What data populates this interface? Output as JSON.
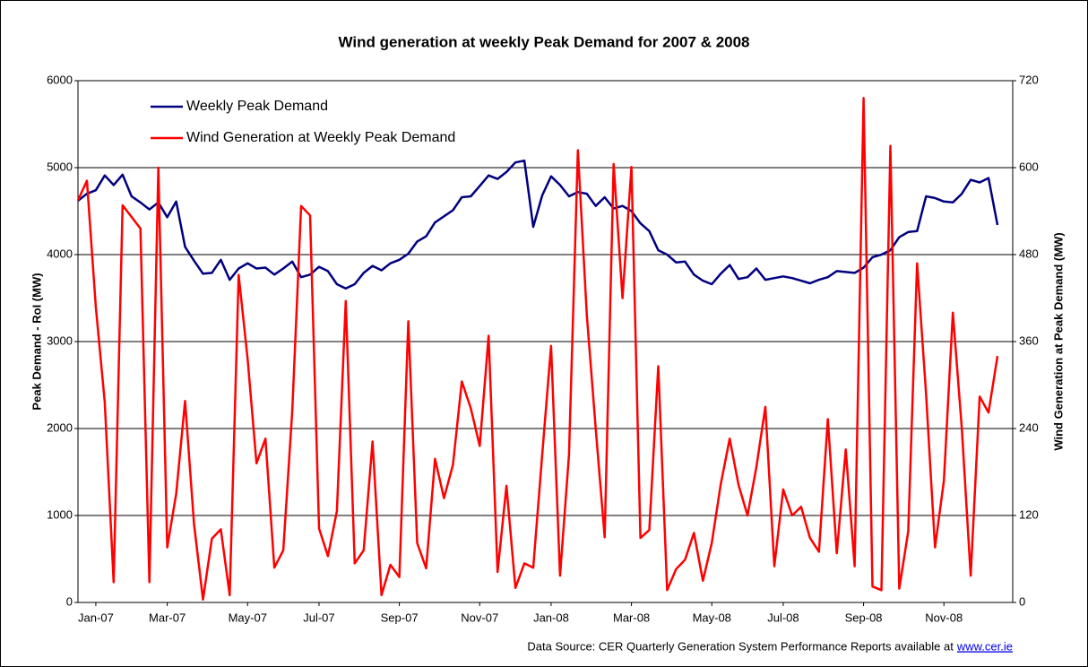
{
  "chart_data": {
    "type": "line",
    "title": "Wind generation at weekly Peak Demand for 2007 & 2008",
    "y_label": "Peak Demand - RoI  (MW)",
    "y2_label": "Wind Generation at Peak Demand (MW)",
    "source": "Data Source: CER Quarterly Generation System Performance Reports available at",
    "source_link": "www.cer.ie",
    "categories": [
      null,
      null,
      "Jan-07",
      null,
      null,
      null,
      null,
      null,
      null,
      null,
      "Mar-07",
      null,
      null,
      null,
      null,
      null,
      null,
      null,
      null,
      "May-07",
      null,
      null,
      null,
      null,
      null,
      null,
      null,
      "Jul-07",
      null,
      null,
      null,
      null,
      null,
      null,
      null,
      null,
      "Sep-07",
      null,
      null,
      null,
      null,
      null,
      null,
      null,
      null,
      "Nov-07",
      null,
      null,
      null,
      null,
      null,
      null,
      null,
      "Jan-08",
      null,
      null,
      null,
      null,
      null,
      null,
      null,
      null,
      "Mar-08",
      null,
      null,
      null,
      null,
      null,
      null,
      null,
      null,
      "May-08",
      null,
      null,
      null,
      null,
      null,
      null,
      null,
      "Jul-08",
      null,
      null,
      null,
      null,
      null,
      null,
      null,
      null,
      "Sep-08",
      null,
      null,
      null,
      null,
      null,
      null,
      null,
      null,
      "Nov-08",
      null,
      null,
      null,
      null,
      null,
      null
    ],
    "series": [
      {
        "name": "Weekly Peak Demand",
        "color": "#000080",
        "axis": "y",
        "values": [
          4620,
          4700,
          4740,
          4910,
          4800,
          4920,
          4670,
          4600,
          4520,
          4600,
          4430,
          4610,
          4090,
          3930,
          3780,
          3790,
          3940,
          3710,
          3840,
          3900,
          3840,
          3850,
          3770,
          3840,
          3920,
          3740,
          3770,
          3860,
          3810,
          3660,
          3610,
          3660,
          3790,
          3870,
          3820,
          3900,
          3940,
          4010,
          4150,
          4210,
          4370,
          4440,
          4510,
          4660,
          4670,
          4790,
          4910,
          4870,
          4950,
          5060,
          5080,
          4320,
          4680,
          4900,
          4800,
          4670,
          4720,
          4700,
          4560,
          4660,
          4530,
          4560,
          4500,
          4360,
          4270,
          4050,
          4000,
          3910,
          3920,
          3770,
          3700,
          3660,
          3780,
          3880,
          3720,
          3740,
          3840,
          3710,
          3730,
          3750,
          3730,
          3700,
          3670,
          3710,
          3740,
          3810,
          3800,
          3790,
          3850,
          3970,
          4000,
          4050,
          4200,
          4260,
          4270,
          4670,
          4650,
          4610,
          4600,
          4700,
          4860,
          4830,
          4880,
          4340
        ]
      },
      {
        "name": "Wind Generation at Weekly Peak Demand",
        "color": "#ff0000",
        "axis": "y2",
        "values": [
          555,
          582,
          408,
          276,
          28,
          548,
          532,
          516,
          28,
          600,
          76,
          150,
          278,
          108,
          4,
          88,
          101,
          10,
          452,
          336,
          192,
          226,
          48,
          72,
          264,
          547,
          534,
          102,
          64,
          126,
          416,
          54,
          72,
          222,
          10,
          52,
          35,
          388,
          82,
          47,
          198,
          144,
          190,
          305,
          268,
          216,
          368,
          42,
          161,
          20,
          54,
          48,
          204,
          354,
          37,
          204,
          624,
          396,
          240,
          90,
          605,
          420,
          601,
          89,
          100,
          326,
          17,
          46,
          59,
          96,
          30,
          82,
          163,
          226,
          162,
          120,
          187,
          270,
          50,
          156,
          120,
          132,
          89,
          70,
          253,
          68,
          211,
          50,
          696,
          22,
          17,
          630,
          19,
          98,
          468,
          288,
          76,
          168,
          400,
          240,
          37,
          284,
          262,
          340
        ]
      }
    ],
    "ylim": [
      0,
      6000
    ],
    "yticks": [
      0,
      1000,
      2000,
      3000,
      4000,
      5000,
      6000
    ],
    "y2lim": [
      0,
      720
    ],
    "y2ticks": [
      0,
      120,
      240,
      360,
      480,
      600,
      720
    ],
    "grid": true,
    "legend": "top-left"
  }
}
